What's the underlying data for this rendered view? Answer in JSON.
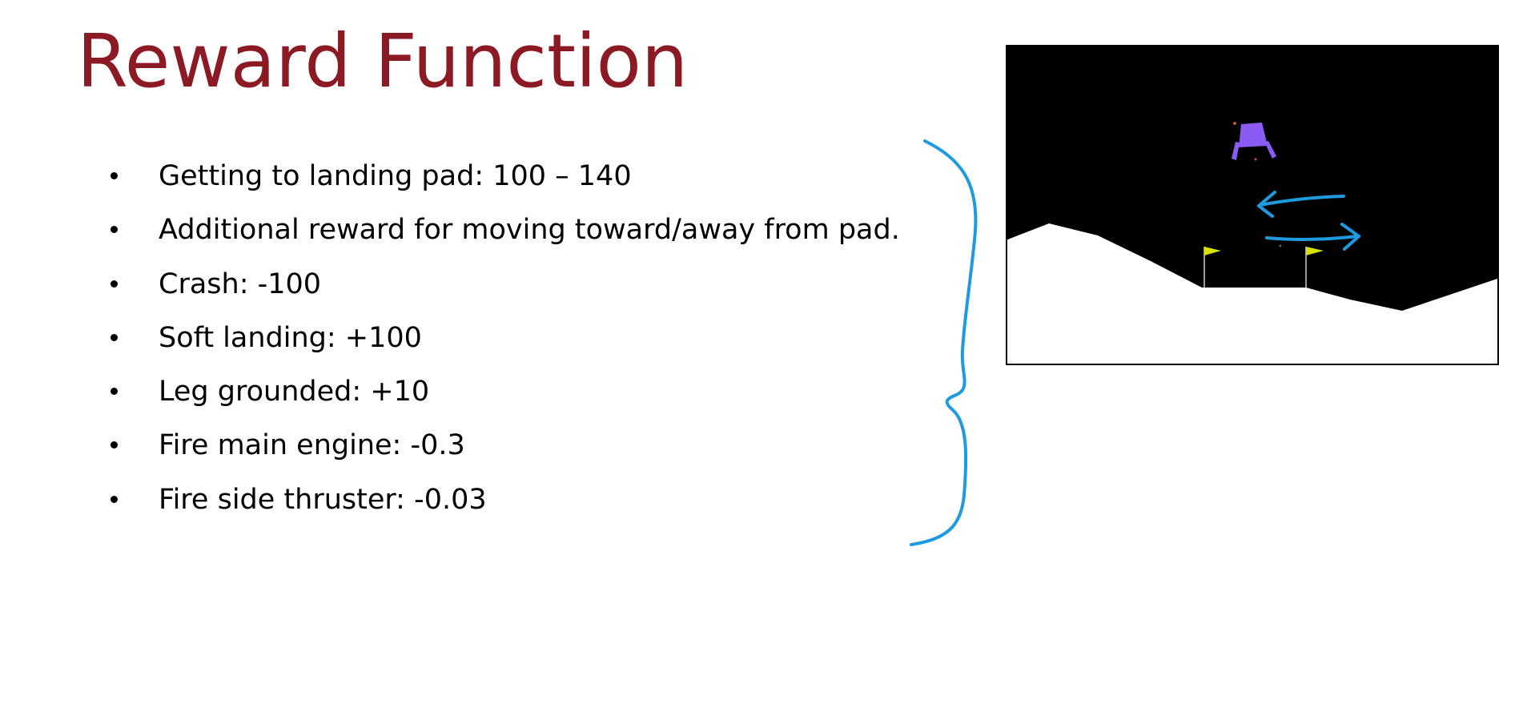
{
  "slide": {
    "title": "Reward Function",
    "bullets": [
      {
        "text": "Getting to landing pad: 100 – 140"
      },
      {
        "text": "Additional reward for moving toward/away from pad."
      },
      {
        "text": "Crash: -100"
      },
      {
        "text": "Soft landing: +100"
      },
      {
        "text": "Leg grounded: +10"
      },
      {
        "text": "Fire main engine: -0.3"
      },
      {
        "text": "Fire side thruster: -0.03"
      }
    ]
  },
  "illustration": {
    "scene": "lunar-lander-game",
    "colors": {
      "title": "#8b1a24",
      "sky": "#000000",
      "ground": "#ffffff",
      "lander": "#8a5cf5",
      "flags": "#d8e000",
      "annotation": "#1e9be0"
    }
  }
}
